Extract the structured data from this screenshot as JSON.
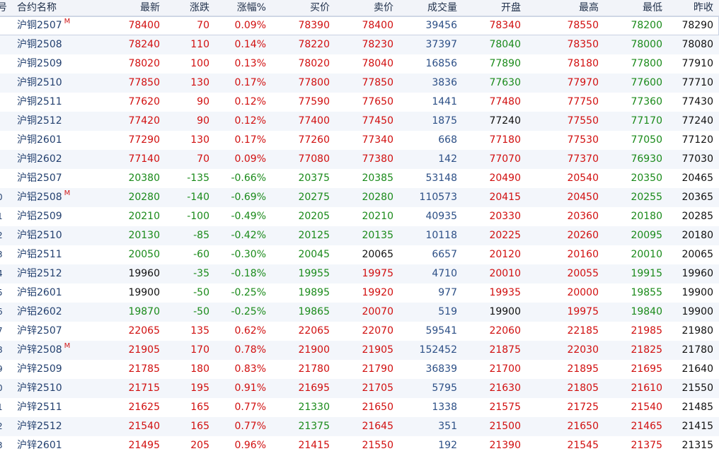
{
  "header": {
    "seq": "号",
    "name": "合约名称",
    "last": "最新",
    "change": "涨跌",
    "change_pct": "涨幅%",
    "bid": "买价",
    "ask": "卖价",
    "volume": "成交量",
    "open": "开盘",
    "high": "最高",
    "low": "最低",
    "prev_close": "昨收"
  },
  "main_mark": "M",
  "colors": {
    "up": "#d10f0f",
    "down": "#1a8a1a",
    "flat": "#111111",
    "volume": "#2c4f86",
    "name": "#23406f"
  },
  "rows": [
    {
      "seq": "",
      "name": "沪铜2507",
      "main": true,
      "last": "78400",
      "change": "70",
      "change_pct": "0.09%",
      "bid": "78390",
      "ask": "78400",
      "volume": "39456",
      "open": "78340",
      "high": "78550",
      "low": "78200",
      "prev_close": "78290"
    },
    {
      "seq": "",
      "name": "沪铜2508",
      "main": false,
      "last": "78240",
      "change": "110",
      "change_pct": "0.14%",
      "bid": "78220",
      "ask": "78230",
      "volume": "37397",
      "open": "78040",
      "high": "78350",
      "low": "78000",
      "prev_close": "78080"
    },
    {
      "seq": "",
      "name": "沪铜2509",
      "main": false,
      "last": "78020",
      "change": "100",
      "change_pct": "0.13%",
      "bid": "78020",
      "ask": "78040",
      "volume": "16856",
      "open": "77890",
      "high": "78180",
      "low": "77800",
      "prev_close": "77910"
    },
    {
      "seq": "",
      "name": "沪铜2510",
      "main": false,
      "last": "77850",
      "change": "130",
      "change_pct": "0.17%",
      "bid": "77800",
      "ask": "77850",
      "volume": "3836",
      "open": "77630",
      "high": "77970",
      "low": "77600",
      "prev_close": "77710"
    },
    {
      "seq": "",
      "name": "沪铜2511",
      "main": false,
      "last": "77620",
      "change": "90",
      "change_pct": "0.12%",
      "bid": "77590",
      "ask": "77650",
      "volume": "1441",
      "open": "77480",
      "high": "77750",
      "low": "77360",
      "prev_close": "77430"
    },
    {
      "seq": "",
      "name": "沪铜2512",
      "main": false,
      "last": "77420",
      "change": "90",
      "change_pct": "0.12%",
      "bid": "77400",
      "ask": "77450",
      "volume": "1875",
      "open": "77240",
      "high": "77550",
      "low": "77170",
      "prev_close": "77240"
    },
    {
      "seq": "",
      "name": "沪铜2601",
      "main": false,
      "last": "77290",
      "change": "130",
      "change_pct": "0.17%",
      "bid": "77260",
      "ask": "77340",
      "volume": "668",
      "open": "77180",
      "high": "77530",
      "low": "77050",
      "prev_close": "77120"
    },
    {
      "seq": "",
      "name": "沪铜2602",
      "main": false,
      "last": "77140",
      "change": "70",
      "change_pct": "0.09%",
      "bid": "77080",
      "ask": "77380",
      "volume": "142",
      "open": "77070",
      "high": "77370",
      "low": "76930",
      "prev_close": "77030"
    },
    {
      "seq": "",
      "name": "沪铝2507",
      "main": false,
      "last": "20380",
      "change": "-135",
      "change_pct": "-0.66%",
      "bid": "20375",
      "ask": "20385",
      "volume": "53148",
      "open": "20490",
      "high": "20540",
      "low": "20350",
      "prev_close": "20465"
    },
    {
      "seq": "0",
      "name": "沪铝2508",
      "main": true,
      "last": "20280",
      "change": "-140",
      "change_pct": "-0.69%",
      "bid": "20275",
      "ask": "20280",
      "volume": "110573",
      "open": "20415",
      "high": "20450",
      "low": "20255",
      "prev_close": "20365"
    },
    {
      "seq": "1",
      "name": "沪铝2509",
      "main": false,
      "last": "20210",
      "change": "-100",
      "change_pct": "-0.49%",
      "bid": "20205",
      "ask": "20210",
      "volume": "40935",
      "open": "20330",
      "high": "20360",
      "low": "20180",
      "prev_close": "20285"
    },
    {
      "seq": "2",
      "name": "沪铝2510",
      "main": false,
      "last": "20130",
      "change": "-85",
      "change_pct": "-0.42%",
      "bid": "20125",
      "ask": "20135",
      "volume": "10118",
      "open": "20225",
      "high": "20260",
      "low": "20095",
      "prev_close": "20180"
    },
    {
      "seq": "3",
      "name": "沪铝2511",
      "main": false,
      "last": "20050",
      "change": "-60",
      "change_pct": "-0.30%",
      "bid": "20045",
      "ask": "20065",
      "volume": "6657",
      "open": "20120",
      "high": "20160",
      "low": "20010",
      "prev_close": "20065"
    },
    {
      "seq": "4",
      "name": "沪铝2512",
      "main": false,
      "last": "19960",
      "change": "-35",
      "change_pct": "-0.18%",
      "bid": "19955",
      "ask": "19975",
      "volume": "4710",
      "open": "20010",
      "high": "20055",
      "low": "19915",
      "prev_close": "19960"
    },
    {
      "seq": "5",
      "name": "沪铝2601",
      "main": false,
      "last": "19900",
      "change": "-50",
      "change_pct": "-0.25%",
      "bid": "19895",
      "ask": "19920",
      "volume": "977",
      "open": "19935",
      "high": "20000",
      "low": "19855",
      "prev_close": "19900"
    },
    {
      "seq": "6",
      "name": "沪铝2602",
      "main": false,
      "last": "19870",
      "change": "-50",
      "change_pct": "-0.25%",
      "bid": "19865",
      "ask": "20070",
      "volume": "519",
      "open": "19900",
      "high": "19975",
      "low": "19840",
      "prev_close": "19900"
    },
    {
      "seq": "7",
      "name": "沪锌2507",
      "main": false,
      "last": "22065",
      "change": "135",
      "change_pct": "0.62%",
      "bid": "22065",
      "ask": "22070",
      "volume": "59541",
      "open": "22060",
      "high": "22185",
      "low": "21985",
      "prev_close": "21980"
    },
    {
      "seq": "8",
      "name": "沪锌2508",
      "main": true,
      "last": "21905",
      "change": "170",
      "change_pct": "0.78%",
      "bid": "21900",
      "ask": "21905",
      "volume": "152452",
      "open": "21875",
      "high": "22030",
      "low": "21825",
      "prev_close": "21780"
    },
    {
      "seq": "9",
      "name": "沪锌2509",
      "main": false,
      "last": "21785",
      "change": "180",
      "change_pct": "0.83%",
      "bid": "21780",
      "ask": "21790",
      "volume": "36839",
      "open": "21700",
      "high": "21895",
      "low": "21695",
      "prev_close": "21640"
    },
    {
      "seq": "0",
      "name": "沪锌2510",
      "main": false,
      "last": "21715",
      "change": "195",
      "change_pct": "0.91%",
      "bid": "21695",
      "ask": "21705",
      "volume": "5795",
      "open": "21630",
      "high": "21805",
      "low": "21610",
      "prev_close": "21550"
    },
    {
      "seq": "1",
      "name": "沪锌2511",
      "main": false,
      "last": "21625",
      "change": "165",
      "change_pct": "0.77%",
      "bid": "21330",
      "ask": "21650",
      "volume": "1338",
      "open": "21575",
      "high": "21725",
      "low": "21540",
      "prev_close": "21485"
    },
    {
      "seq": "2",
      "name": "沪锌2512",
      "main": false,
      "last": "21540",
      "change": "165",
      "change_pct": "0.77%",
      "bid": "21375",
      "ask": "21645",
      "volume": "351",
      "open": "21500",
      "high": "21650",
      "low": "21465",
      "prev_close": "21415"
    },
    {
      "seq": "3",
      "name": "沪锌2601",
      "main": false,
      "last": "21495",
      "change": "205",
      "change_pct": "0.96%",
      "bid": "21415",
      "ask": "21550",
      "volume": "192",
      "open": "21390",
      "high": "21545",
      "low": "21375",
      "prev_close": "21315"
    }
  ]
}
